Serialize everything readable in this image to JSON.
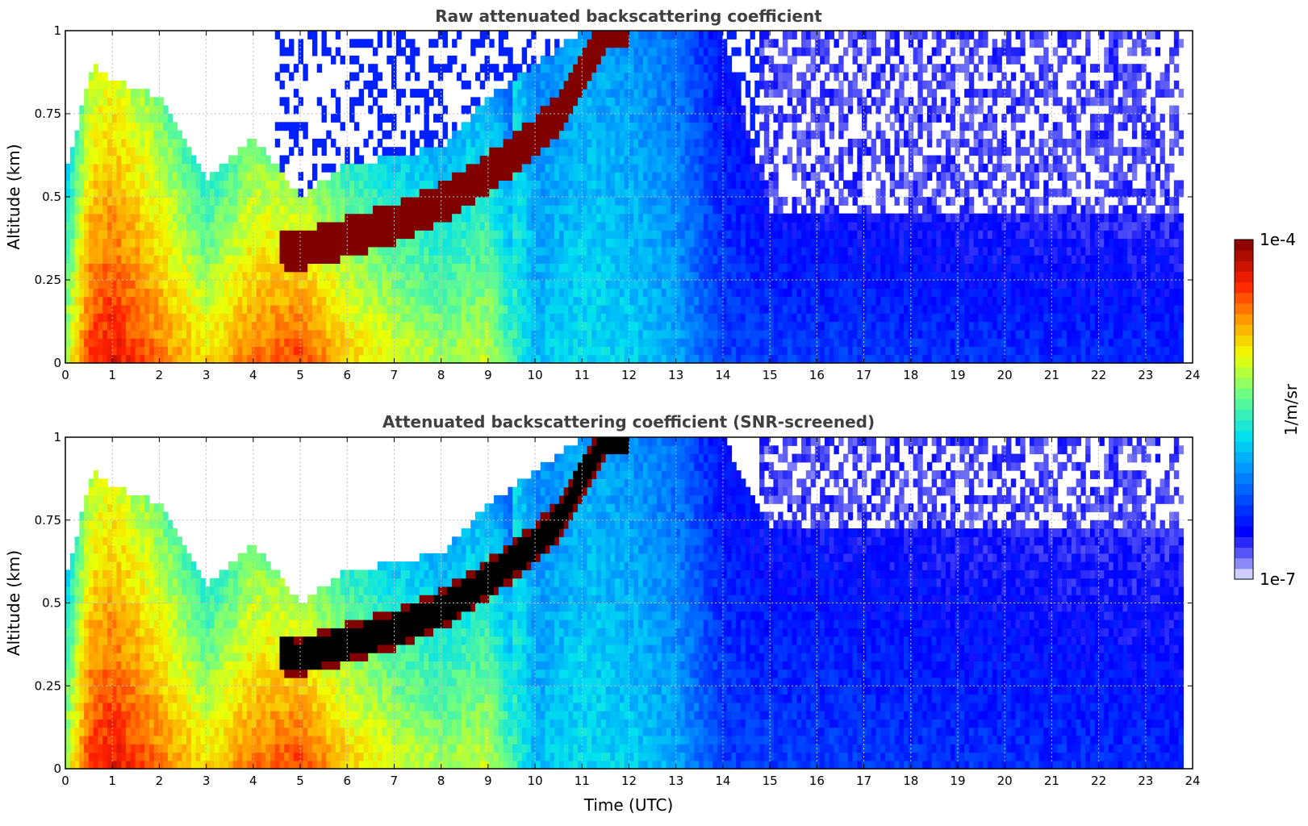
{
  "chart_data": [
    {
      "type": "heatmap",
      "title": "Raw attenuated backscattering coefficient",
      "xlabel": "",
      "ylabel": "Altitude (km)",
      "xlim": [
        0,
        24
      ],
      "ylim": [
        0,
        1
      ],
      "x_ticks": [
        "0",
        "1",
        "2",
        "3",
        "4",
        "5",
        "6",
        "7",
        "8",
        "9",
        "10",
        "11",
        "12",
        "13",
        "14",
        "15",
        "16",
        "17",
        "18",
        "19",
        "20",
        "21",
        "22",
        "23",
        "24"
      ],
      "y_ticks": [
        "0",
        "0.25",
        "0.5",
        "0.75",
        "1"
      ],
      "grid": true,
      "data_end_time": 23.8,
      "colorscale": "jet (log)",
      "profile_level_index_by_hour": [
        [
          0,
          0.62
        ],
        [
          0.5,
          0.85
        ],
        [
          1,
          0.9
        ],
        [
          1.5,
          0.85
        ],
        [
          2,
          0.8
        ],
        [
          3,
          0.7
        ],
        [
          4,
          0.8
        ],
        [
          5,
          0.85
        ],
        [
          6,
          0.72
        ],
        [
          7,
          0.65
        ],
        [
          8,
          0.6
        ],
        [
          9,
          0.62
        ],
        [
          10,
          0.38
        ],
        [
          11,
          0.42
        ],
        [
          12,
          0.4
        ],
        [
          13,
          0.35
        ],
        [
          14,
          0.22
        ],
        [
          24,
          0.18
        ]
      ],
      "layer_top_km_by_hour": [
        [
          0,
          0.58
        ],
        [
          0.6,
          0.9
        ],
        [
          1,
          0.85
        ],
        [
          2,
          0.8
        ],
        [
          3,
          0.55
        ],
        [
          4,
          0.68
        ],
        [
          5,
          0.5
        ],
        [
          6,
          0.6
        ],
        [
          7,
          0.62
        ],
        [
          8,
          0.65
        ],
        [
          9,
          0.8
        ],
        [
          10,
          0.9
        ],
        [
          11,
          1.0
        ],
        [
          12,
          1.0
        ],
        [
          13,
          1.0
        ],
        [
          14,
          1.0
        ],
        [
          15,
          0.45
        ],
        [
          24,
          0.45
        ]
      ],
      "cloud_layer_km_by_hour": [
        [
          4.6,
          0.35
        ],
        [
          5,
          0.34
        ],
        [
          6,
          0.38
        ],
        [
          7,
          0.42
        ],
        [
          8,
          0.48
        ],
        [
          9,
          0.57
        ],
        [
          10,
          0.68
        ],
        [
          10.5,
          0.75
        ],
        [
          11,
          0.88
        ],
        [
          11.5,
          1.0
        ],
        [
          12,
          1.0
        ]
      ]
    },
    {
      "type": "heatmap",
      "title": "Attenuated backscattering coefficient (SNR-screened)",
      "xlabel": "Time (UTC)",
      "ylabel": "Altitude (km)",
      "xlim": [
        0,
        24
      ],
      "ylim": [
        0,
        1
      ],
      "x_ticks": [
        "0",
        "1",
        "2",
        "3",
        "4",
        "5",
        "6",
        "7",
        "8",
        "9",
        "10",
        "11",
        "12",
        "13",
        "14",
        "15",
        "16",
        "17",
        "18",
        "19",
        "20",
        "21",
        "22",
        "23",
        "24"
      ],
      "y_ticks": [
        "0",
        "0.25",
        "0.5",
        "0.75",
        "1"
      ],
      "grid": true,
      "data_end_time": 23.8,
      "colorscale": "jet (log)",
      "screened_color": "#000000",
      "profile_level_index_by_hour": [
        [
          0,
          0.62
        ],
        [
          0.5,
          0.85
        ],
        [
          1,
          0.9
        ],
        [
          1.5,
          0.85
        ],
        [
          2,
          0.8
        ],
        [
          3,
          0.7
        ],
        [
          4,
          0.8
        ],
        [
          5,
          0.85
        ],
        [
          6,
          0.72
        ],
        [
          7,
          0.65
        ],
        [
          8,
          0.6
        ],
        [
          9,
          0.62
        ],
        [
          10,
          0.38
        ],
        [
          11,
          0.42
        ],
        [
          12,
          0.4
        ],
        [
          13,
          0.35
        ],
        [
          14,
          0.22
        ],
        [
          24,
          0.18
        ]
      ],
      "layer_top_km_by_hour": [
        [
          0,
          0.58
        ],
        [
          0.6,
          0.9
        ],
        [
          1,
          0.85
        ],
        [
          2,
          0.8
        ],
        [
          3,
          0.55
        ],
        [
          4,
          0.68
        ],
        [
          5,
          0.5
        ],
        [
          6,
          0.6
        ],
        [
          7,
          0.62
        ],
        [
          8,
          0.65
        ],
        [
          9,
          0.8
        ],
        [
          10,
          0.9
        ],
        [
          11,
          1.0
        ],
        [
          12,
          1.0
        ],
        [
          13,
          1.0
        ],
        [
          14,
          1.0
        ],
        [
          15,
          0.72
        ],
        [
          24,
          0.72
        ]
      ],
      "cloud_layer_km_by_hour": [
        [
          4.6,
          0.35
        ],
        [
          5,
          0.34
        ],
        [
          6,
          0.38
        ],
        [
          7,
          0.42
        ],
        [
          8,
          0.48
        ],
        [
          9,
          0.57
        ],
        [
          10,
          0.68
        ],
        [
          10.5,
          0.75
        ],
        [
          11,
          0.88
        ],
        [
          11.5,
          1.0
        ],
        [
          12,
          1.0
        ]
      ]
    }
  ],
  "colorbar": {
    "label": "1/m/sr",
    "max_label": "1e-4",
    "min_label": "1e-7",
    "max_value": 0.0001,
    "min_value": 1e-07,
    "scale": "log"
  }
}
